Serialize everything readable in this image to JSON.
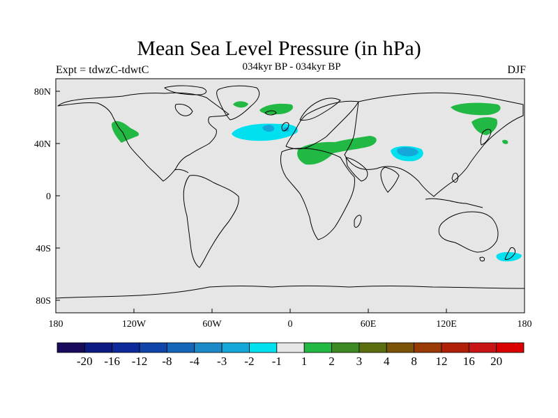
{
  "title": "Mean Sea Level Pressure (in hPa)",
  "subtitle_left": "Expt = tdwzC-tdwtC",
  "subtitle_center": "034kyr BP - 034kyr BP",
  "subtitle_right": "DJF",
  "lat_ticks": [
    "80N",
    "40N",
    "0",
    "40S",
    "80S"
  ],
  "lon_ticks": [
    "180",
    "120W",
    "60W",
    "0",
    "60E",
    "120E",
    "180"
  ],
  "colorbar": {
    "labels": [
      "-20",
      "-16",
      "-12",
      "-8",
      "-4",
      "-3",
      "-2",
      "-1",
      "1",
      "2",
      "3",
      "4",
      "8",
      "12",
      "16",
      "20"
    ],
    "colors": [
      "#1a0a5c",
      "#0d1a80",
      "#0d2a9a",
      "#0f45a8",
      "#1466b8",
      "#1d8ac8",
      "#14a8d8",
      "#00e0ee",
      "#e6e6e6",
      "#22b844",
      "#3d8a22",
      "#5a6e10",
      "#7a5208",
      "#993a06",
      "#b02008",
      "#c81414",
      "#d80000"
    ]
  },
  "map": {
    "ocean_fill": "#e6e6e6",
    "positive_color": "#22b844",
    "negative_light": "#00e0ee",
    "negative_dark": "#14a8d8"
  }
}
